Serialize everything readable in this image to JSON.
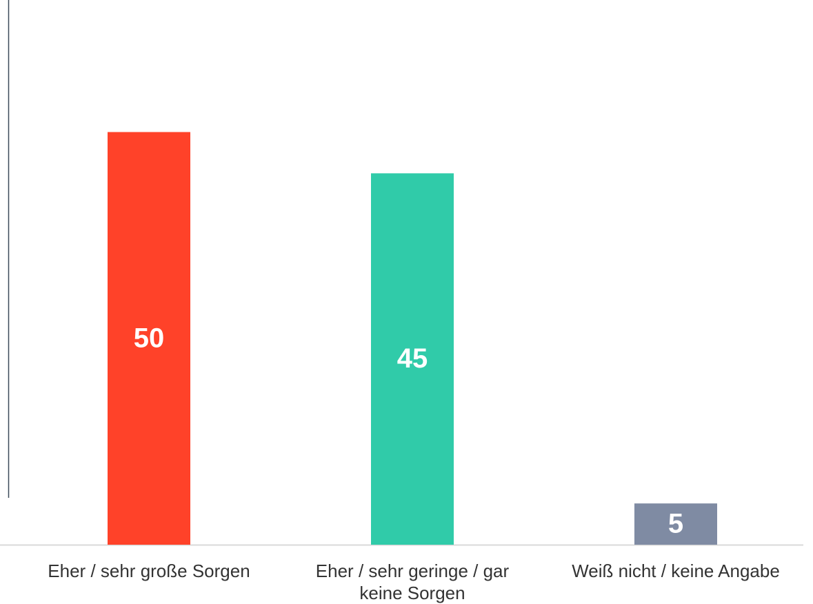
{
  "chart_data": {
    "type": "bar",
    "categories": [
      "Eher / sehr große Sorgen",
      "Eher / sehr geringe / gar keine Sorgen",
      "Weiß nicht / keine Angabe"
    ],
    "values": [
      50,
      45,
      5
    ],
    "colors": [
      "#ff4229",
      "#30cba9",
      "#7f8ba3"
    ],
    "ylim": [
      0,
      66
    ]
  }
}
